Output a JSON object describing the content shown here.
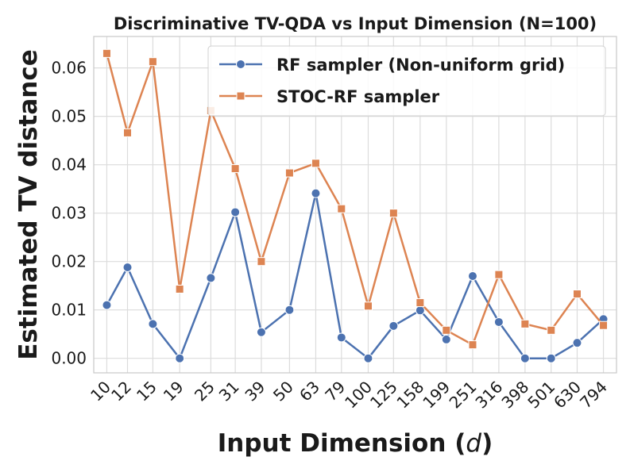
{
  "chart_data": {
    "type": "line",
    "title": "Discriminative TV-QDA vs Input Dimension (N=100)",
    "xlabel_prefix": "Input Dimension (",
    "xlabel_var": "d",
    "xlabel_suffix": ")",
    "ylabel": "Estimated TV distance",
    "categories": [
      "10",
      "12",
      "15",
      "19",
      "25",
      "31",
      "39",
      "50",
      "63",
      "79",
      "100",
      "125",
      "158",
      "199",
      "251",
      "316",
      "398",
      "501",
      "630",
      "794"
    ],
    "x": [
      10,
      12,
      15,
      19,
      25,
      31,
      39,
      50,
      63,
      79,
      100,
      125,
      158,
      199,
      251,
      316,
      398,
      501,
      630,
      794
    ],
    "ylim": [
      -0.003,
      0.0665
    ],
    "yticks": [
      0.0,
      0.01,
      0.02,
      0.03,
      0.04,
      0.05,
      0.06
    ],
    "ytick_labels": [
      "0.00",
      "0.01",
      "0.02",
      "0.03",
      "0.04",
      "0.05",
      "0.06"
    ],
    "grid": true,
    "legend_position": "top-right",
    "series": [
      {
        "name": "RF sampler (Non-uniform grid)",
        "color": "#4c72b0",
        "marker": "circle",
        "values": [
          0.011,
          0.0188,
          0.0071,
          0.0,
          0.0166,
          0.0302,
          0.0054,
          0.01,
          0.0341,
          0.0043,
          0.0,
          0.0067,
          0.0099,
          0.0039,
          0.017,
          0.0075,
          0.0,
          0.0,
          0.0032,
          0.0081
        ]
      },
      {
        "name": "STOC-RF sampler",
        "color": "#dd8452",
        "marker": "square",
        "values": [
          0.063,
          0.0466,
          0.0613,
          0.0143,
          0.0512,
          0.0392,
          0.02,
          0.0383,
          0.0403,
          0.0309,
          0.0108,
          0.03,
          0.0115,
          0.0058,
          0.0028,
          0.0173,
          0.0071,
          0.0058,
          0.0133,
          0.0068
        ]
      }
    ]
  }
}
